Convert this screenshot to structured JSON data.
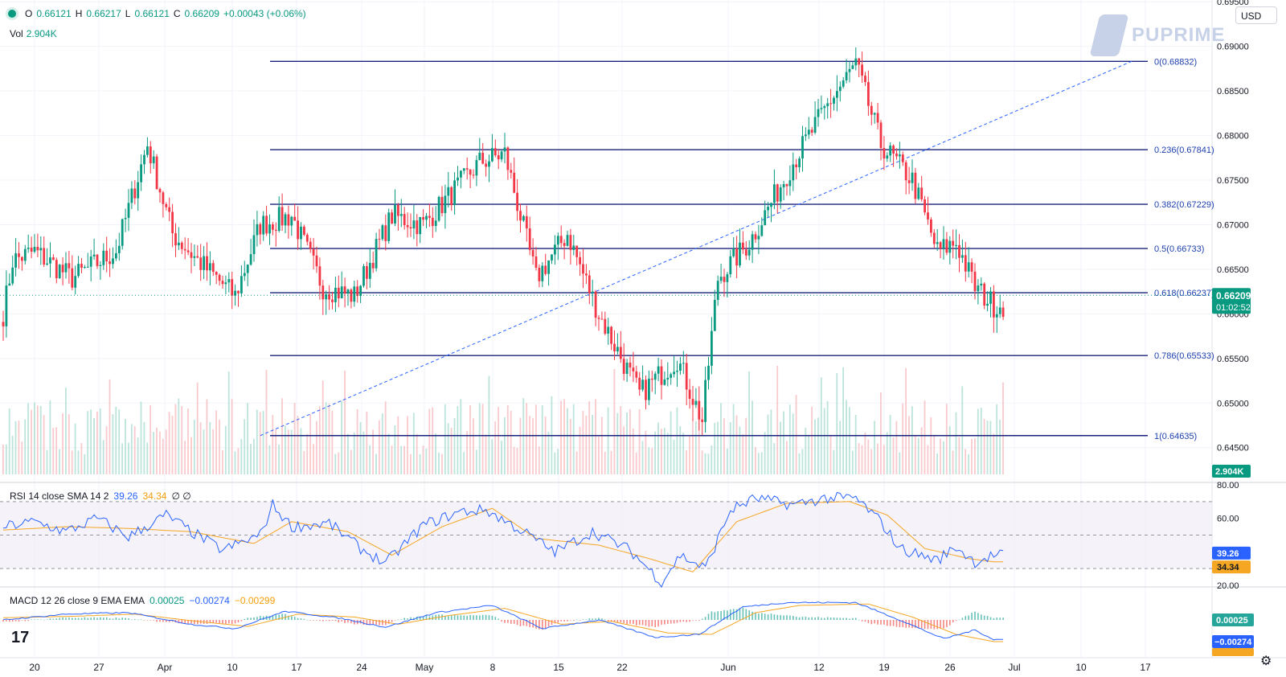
{
  "header": {
    "o_label": "O",
    "o_value": "0.66121",
    "h_label": "H",
    "h_value": "0.66217",
    "l_label": "L",
    "l_value": "0.66121",
    "c_label": "C",
    "c_value": "0.66209",
    "change": "+0.00043 (+0.06%)",
    "vol_label": "Vol",
    "vol_value": "2.904K"
  },
  "logo_text": "PUPRIME",
  "currency": "USD",
  "rsi_header": {
    "label": "RSI 14 close SMA 14 2",
    "rsi": "39.26",
    "sma": "34.34",
    "extra": "∅ ∅"
  },
  "macd_header": {
    "label": "MACD 12 26 close 9 EMA EMA",
    "hist": "0.00025",
    "macd": "−0.00274",
    "signal": "−0.00299"
  },
  "colors": {
    "up": "#089981",
    "down": "#f23645",
    "fib": "#1a237e",
    "rsi": "#2962ff",
    "sma": "#f5a623",
    "price_tag": "#089981"
  },
  "chart_data": [
    {
      "type": "candlestick",
      "ylim": [
        0.642,
        0.6952
      ],
      "y_ticks": [
        "0.69500",
        "0.69000",
        "0.68500",
        "0.68000",
        "0.67500",
        "0.67000",
        "0.66500",
        "0.66000",
        "0.65500",
        "0.65000",
        "0.64500"
      ],
      "x_ticks": [
        "20",
        "27",
        "Apr",
        "10",
        "17",
        "24",
        "May",
        "8",
        "15",
        "22",
        "Jun",
        "12",
        "19",
        "26",
        "Jul",
        "10",
        "17"
      ],
      "last_price": "0.66209",
      "countdown": "01:02:52",
      "close_anchors": [
        [
          0,
          0.66
        ],
        [
          3,
          0.666
        ],
        [
          10,
          0.667
        ],
        [
          22,
          0.664
        ],
        [
          36,
          0.667
        ],
        [
          46,
          0.679
        ],
        [
          54,
          0.669
        ],
        [
          62,
          0.666
        ],
        [
          74,
          0.662
        ],
        [
          82,
          0.67
        ],
        [
          92,
          0.671
        ],
        [
          102,
          0.663
        ],
        [
          112,
          0.662
        ],
        [
          124,
          0.671
        ],
        [
          134,
          0.67
        ],
        [
          152,
          0.677
        ],
        [
          160,
          0.678
        ],
        [
          170,
          0.664
        ],
        [
          180,
          0.669
        ],
        [
          190,
          0.66
        ],
        [
          203,
          0.651
        ],
        [
          215,
          0.655
        ],
        [
          223,
          0.648
        ],
        [
          228,
          0.664
        ],
        [
          238,
          0.668
        ],
        [
          252,
          0.677
        ],
        [
          264,
          0.684
        ],
        [
          272,
          0.688
        ],
        [
          280,
          0.679
        ],
        [
          290,
          0.675
        ],
        [
          298,
          0.667
        ],
        [
          304,
          0.668
        ],
        [
          310,
          0.663
        ],
        [
          316,
          0.661
        ]
      ]
    },
    {
      "type": "fibonacci",
      "levels": [
        {
          "label": "0(0.68832)",
          "price": 0.68832
        },
        {
          "label": "0.236(0.67841)",
          "price": 0.67841
        },
        {
          "label": "0.382(0.67229)",
          "price": 0.67229
        },
        {
          "label": "0.5(0.66733)",
          "price": 0.66733
        },
        {
          "label": "0.618(0.66237)",
          "price": 0.66237
        },
        {
          "label": "0.786(0.65533)",
          "price": 0.65533
        },
        {
          "label": "1(0.64635)",
          "price": 0.64635
        }
      ],
      "trend_line": [
        [
          82,
          0.64635
        ],
        [
          360,
          0.68832
        ]
      ]
    },
    {
      "type": "bar",
      "name": "Vol",
      "last_value": "2.904K"
    },
    {
      "type": "line",
      "ylim": [
        20,
        80
      ],
      "y_ticks": [
        "80.00",
        "60.00",
        "20.00"
      ],
      "levels": [
        70,
        50,
        30
      ],
      "rsi_last": "39.26",
      "sma_last": "34.34",
      "rsi_anchors": [
        [
          0,
          55
        ],
        [
          10,
          58
        ],
        [
          20,
          52
        ],
        [
          30,
          60
        ],
        [
          40,
          49
        ],
        [
          52,
          62
        ],
        [
          60,
          52
        ],
        [
          70,
          41
        ],
        [
          82,
          50
        ],
        [
          86,
          68
        ],
        [
          92,
          55
        ],
        [
          104,
          57
        ],
        [
          114,
          42
        ],
        [
          122,
          33
        ],
        [
          134,
          56
        ],
        [
          146,
          64
        ],
        [
          154,
          65
        ],
        [
          166,
          52
        ],
        [
          176,
          40
        ],
        [
          188,
          52
        ],
        [
          200,
          41
        ],
        [
          210,
          22
        ],
        [
          216,
          38
        ],
        [
          224,
          30
        ],
        [
          232,
          65
        ],
        [
          240,
          72
        ],
        [
          252,
          68
        ],
        [
          262,
          72
        ],
        [
          272,
          72
        ],
        [
          280,
          58
        ],
        [
          286,
          42
        ],
        [
          298,
          35
        ],
        [
          304,
          43
        ],
        [
          310,
          34
        ],
        [
          316,
          38
        ]
      ],
      "sma_anchors": [
        [
          0,
          53
        ],
        [
          20,
          55
        ],
        [
          40,
          54
        ],
        [
          60,
          52
        ],
        [
          80,
          45
        ],
        [
          92,
          58
        ],
        [
          110,
          52
        ],
        [
          124,
          38
        ],
        [
          140,
          55
        ],
        [
          156,
          66
        ],
        [
          170,
          48
        ],
        [
          190,
          44
        ],
        [
          206,
          36
        ],
        [
          220,
          28
        ],
        [
          234,
          58
        ],
        [
          250,
          69
        ],
        [
          270,
          70
        ],
        [
          282,
          62
        ],
        [
          294,
          42
        ],
        [
          308,
          36
        ],
        [
          316,
          34
        ]
      ]
    },
    {
      "type": "bar",
      "name": "MACD",
      "hist_last": "0.00025",
      "macd_last": "−0.00274",
      "signal_last": "−0.00299",
      "macd_anchors": [
        [
          0,
          0.0
        ],
        [
          20,
          0.0008
        ],
        [
          40,
          0.001
        ],
        [
          60,
          -0.0006
        ],
        [
          74,
          -0.0012
        ],
        [
          90,
          0.0012
        ],
        [
          108,
          0.0002
        ],
        [
          122,
          -0.001
        ],
        [
          138,
          0.001
        ],
        [
          156,
          0.002
        ],
        [
          172,
          -0.0012
        ],
        [
          190,
          0.0
        ],
        [
          208,
          -0.0024
        ],
        [
          222,
          -0.002
        ],
        [
          236,
          0.0018
        ],
        [
          250,
          0.0024
        ],
        [
          272,
          0.0024
        ],
        [
          286,
          0.0
        ],
        [
          300,
          -0.0026
        ],
        [
          310,
          -0.0014
        ],
        [
          316,
          -0.0027
        ]
      ],
      "signal_anchors": [
        [
          0,
          0.0003
        ],
        [
          22,
          0.0005
        ],
        [
          42,
          0.0008
        ],
        [
          62,
          -0.0002
        ],
        [
          78,
          -0.0009
        ],
        [
          94,
          0.0008
        ],
        [
          112,
          0.0004
        ],
        [
          126,
          -0.0006
        ],
        [
          142,
          0.0006
        ],
        [
          160,
          0.0016
        ],
        [
          178,
          -0.0006
        ],
        [
          194,
          -0.0002
        ],
        [
          212,
          -0.0018
        ],
        [
          226,
          -0.002
        ],
        [
          240,
          0.001
        ],
        [
          254,
          0.002
        ],
        [
          276,
          0.0022
        ],
        [
          290,
          0.0004
        ],
        [
          304,
          -0.002
        ],
        [
          316,
          -0.003
        ]
      ]
    }
  ]
}
